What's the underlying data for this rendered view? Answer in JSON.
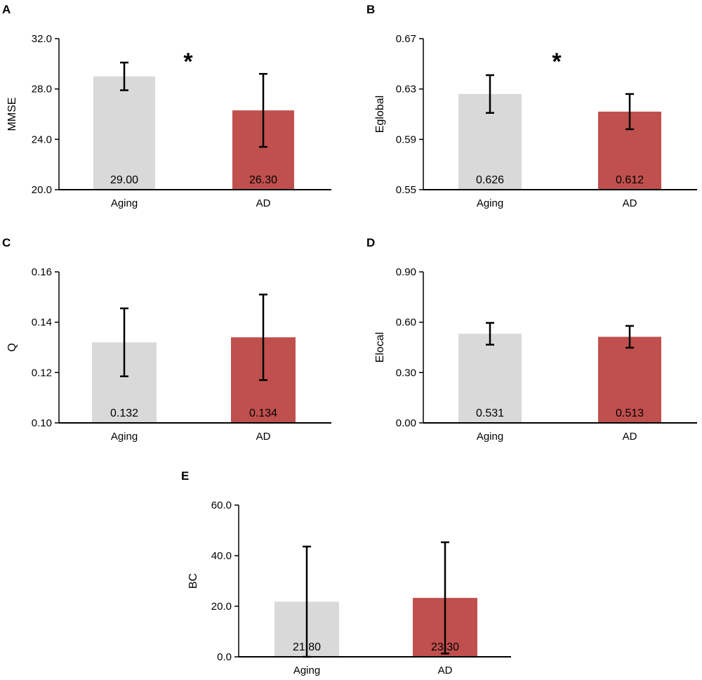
{
  "colors": {
    "aging": "#d9d9d9",
    "ad": "#c0504d",
    "axis": "#000000",
    "errorbar": "#000000"
  },
  "chart_data": [
    {
      "panel": "A",
      "type": "bar",
      "ylabel": "MMSE",
      "categories": [
        "Aging",
        "AD"
      ],
      "values": [
        29.0,
        26.3
      ],
      "errors": [
        1.1,
        2.9
      ],
      "data_labels": [
        "29.00",
        "26.30"
      ],
      "ylim": [
        20.0,
        32.0
      ],
      "yticks": [
        20.0,
        24.0,
        28.0,
        32.0
      ],
      "ytick_labels": [
        "20.0",
        "24.0",
        "28.0",
        "32.0"
      ],
      "significance": "*"
    },
    {
      "panel": "B",
      "type": "bar",
      "ylabel": "Eglobal",
      "categories": [
        "Aging",
        "AD"
      ],
      "values": [
        0.626,
        0.612
      ],
      "errors": [
        0.015,
        0.014
      ],
      "data_labels": [
        "0.626",
        "0.612"
      ],
      "ylim": [
        0.55,
        0.67
      ],
      "yticks": [
        0.55,
        0.59,
        0.63,
        0.67
      ],
      "ytick_labels": [
        "0.55",
        "0.59",
        "0.63",
        "0.67"
      ],
      "significance": "*"
    },
    {
      "panel": "C",
      "type": "bar",
      "ylabel": "Q",
      "categories": [
        "Aging",
        "AD"
      ],
      "values": [
        0.132,
        0.134
      ],
      "errors": [
        0.0135,
        0.017
      ],
      "data_labels": [
        "0.132",
        "0.134"
      ],
      "ylim": [
        0.1,
        0.16
      ],
      "yticks": [
        0.1,
        0.12,
        0.14,
        0.16
      ],
      "ytick_labels": [
        "0.10",
        "0.12",
        "0.14",
        "0.16"
      ],
      "significance": ""
    },
    {
      "panel": "D",
      "type": "bar",
      "ylabel": "Elocal",
      "categories": [
        "Aging",
        "AD"
      ],
      "values": [
        0.531,
        0.513
      ],
      "errors": [
        0.065,
        0.065
      ],
      "data_labels": [
        "0.531",
        "0.513"
      ],
      "ylim": [
        0.0,
        0.9
      ],
      "yticks": [
        0.0,
        0.3,
        0.6,
        0.9
      ],
      "ytick_labels": [
        "0.00",
        "0.30",
        "0.60",
        "0.90"
      ],
      "significance": ""
    },
    {
      "panel": "E",
      "type": "bar",
      "ylabel": "BC",
      "categories": [
        "Aging",
        "AD"
      ],
      "values": [
        21.8,
        23.3
      ],
      "errors": [
        21.8,
        22.0
      ],
      "data_labels": [
        "21.80",
        "23.30"
      ],
      "ylim": [
        0.0,
        60.0
      ],
      "yticks": [
        0.0,
        20.0,
        40.0,
        60.0
      ],
      "ytick_labels": [
        "0.0",
        "20.0",
        "40.0",
        "60.0"
      ],
      "significance": ""
    }
  ]
}
